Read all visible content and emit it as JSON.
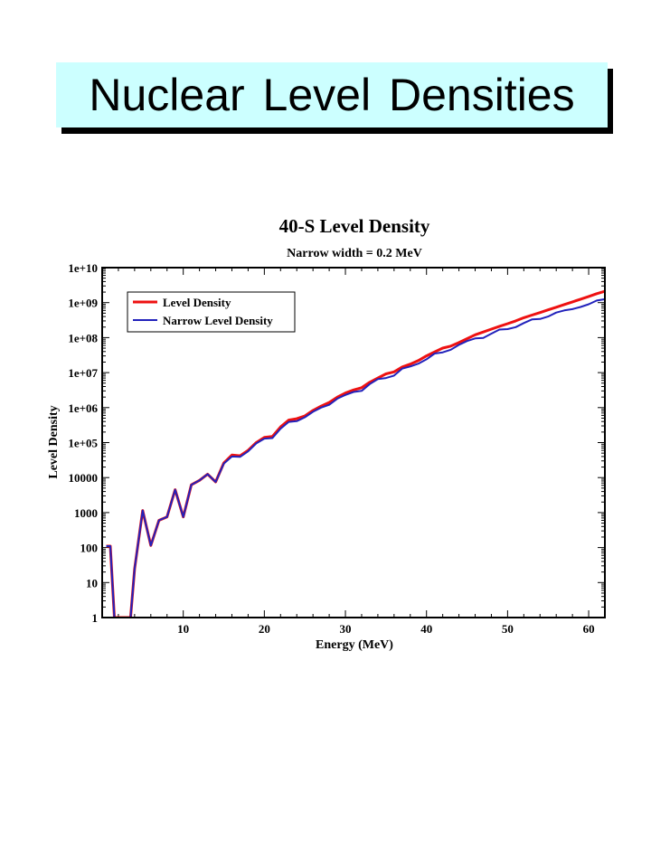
{
  "slide": {
    "title": "Nuclear Level Densities"
  },
  "chart_data": {
    "type": "line",
    "title": "40-S Level Density",
    "subtitle": "Narrow width = 0.2 MeV",
    "xlabel": "Energy (MeV)",
    "ylabel": "Level Density",
    "xlim": [
      0,
      62
    ],
    "ylim": [
      1,
      10000000000
    ],
    "yscale": "log",
    "x_ticks": [
      10,
      20,
      30,
      40,
      50,
      60
    ],
    "x_tick_labels": [
      "10",
      "20",
      "30",
      "40",
      "50",
      "60"
    ],
    "y_ticks": [
      1,
      10,
      100,
      1000,
      10000,
      100000,
      1000000,
      10000000,
      100000000,
      1000000000,
      10000000000
    ],
    "y_tick_labels": [
      "1",
      "10",
      "100",
      "1000",
      "10000",
      "1e+05",
      "1e+06",
      "1e+07",
      "1e+08",
      "1e+09",
      "1e+10"
    ],
    "legend_position": "top-left",
    "grid": false,
    "series": [
      {
        "name": "Level Density",
        "color": "#ee1111",
        "points": [
          [
            0.5,
            110
          ],
          [
            1,
            110
          ],
          [
            1.5,
            1
          ],
          [
            3.5,
            1
          ],
          [
            4,
            25
          ],
          [
            5,
            1150
          ],
          [
            6,
            115
          ],
          [
            7,
            600
          ],
          [
            8,
            750
          ],
          [
            9,
            4500
          ],
          [
            10,
            750
          ],
          [
            11,
            6200
          ],
          [
            12,
            8300
          ],
          [
            13,
            12500
          ],
          [
            14,
            7500
          ],
          [
            15,
            26000
          ],
          [
            16,
            44000
          ],
          [
            17,
            42000
          ],
          [
            18,
            60000
          ],
          [
            19,
            100000
          ],
          [
            20,
            140000
          ],
          [
            21,
            150000
          ],
          [
            22,
            280000
          ],
          [
            23,
            440000
          ],
          [
            24,
            480000
          ],
          [
            25,
            580000
          ],
          [
            26,
            830000
          ],
          [
            27,
            1100000
          ],
          [
            28,
            1400000
          ],
          [
            29,
            2000000
          ],
          [
            30,
            2600000
          ],
          [
            31,
            3200000
          ],
          [
            32,
            3700000
          ],
          [
            33,
            5300000
          ],
          [
            34,
            7000000
          ],
          [
            35,
            9200000
          ],
          [
            36,
            10500000
          ],
          [
            37,
            14500000
          ],
          [
            38,
            17500000
          ],
          [
            39,
            22000000
          ],
          [
            40,
            30000000
          ],
          [
            41,
            39000000
          ],
          [
            42,
            50000000
          ],
          [
            43,
            57000000
          ],
          [
            44,
            72000000
          ],
          [
            45,
            93000000
          ],
          [
            46,
            120000000
          ],
          [
            47,
            145000000
          ],
          [
            48,
            175000000
          ],
          [
            49,
            210000000
          ],
          [
            50,
            250000000
          ],
          [
            51,
            300000000
          ],
          [
            52,
            370000000
          ],
          [
            53,
            440000000
          ],
          [
            54,
            520000000
          ],
          [
            55,
            620000000
          ],
          [
            56,
            740000000
          ],
          [
            57,
            880000000
          ],
          [
            58,
            1050000000
          ],
          [
            59,
            1250000000
          ],
          [
            60,
            1500000000
          ],
          [
            61,
            1800000000
          ],
          [
            62,
            2100000000
          ]
        ]
      },
      {
        "name": "Narrow Level Density",
        "color": "#2222bb",
        "points": [
          [
            0.5,
            110
          ],
          [
            1,
            110
          ],
          [
            1.5,
            1
          ],
          [
            3.5,
            1
          ],
          [
            4,
            25
          ],
          [
            5,
            1150
          ],
          [
            6,
            115
          ],
          [
            7,
            600
          ],
          [
            8,
            750
          ],
          [
            9,
            4500
          ],
          [
            10,
            750
          ],
          [
            11,
            6200
          ],
          [
            12,
            8300
          ],
          [
            13,
            12500
          ],
          [
            14,
            7500
          ],
          [
            15,
            25000
          ],
          [
            16,
            40000
          ],
          [
            17,
            39000
          ],
          [
            18,
            56000
          ],
          [
            19,
            95000
          ],
          [
            20,
            130000
          ],
          [
            21,
            135000
          ],
          [
            22,
            250000
          ],
          [
            23,
            390000
          ],
          [
            24,
            410000
          ],
          [
            25,
            530000
          ],
          [
            26,
            760000
          ],
          [
            27,
            1000000
          ],
          [
            28,
            1200000
          ],
          [
            29,
            1800000
          ],
          [
            30,
            2300000
          ],
          [
            31,
            2800000
          ],
          [
            32,
            3000000
          ],
          [
            33,
            4700000
          ],
          [
            34,
            6500000
          ],
          [
            35,
            7000000
          ],
          [
            36,
            8200000
          ],
          [
            37,
            13000000
          ],
          [
            38,
            15000000
          ],
          [
            39,
            18000000
          ],
          [
            40,
            24000000
          ],
          [
            41,
            35000000
          ],
          [
            42,
            38000000
          ],
          [
            43,
            45000000
          ],
          [
            44,
            62000000
          ],
          [
            45,
            80000000
          ],
          [
            46,
            95000000
          ],
          [
            47,
            98000000
          ],
          [
            48,
            130000000
          ],
          [
            49,
            170000000
          ],
          [
            50,
            175000000
          ],
          [
            51,
            200000000
          ],
          [
            52,
            260000000
          ],
          [
            53,
            330000000
          ],
          [
            54,
            340000000
          ],
          [
            55,
            400000000
          ],
          [
            56,
            520000000
          ],
          [
            57,
            600000000
          ],
          [
            58,
            650000000
          ],
          [
            59,
            750000000
          ],
          [
            60,
            900000000
          ],
          [
            61,
            1150000000
          ],
          [
            62,
            1250000000
          ]
        ]
      }
    ]
  }
}
